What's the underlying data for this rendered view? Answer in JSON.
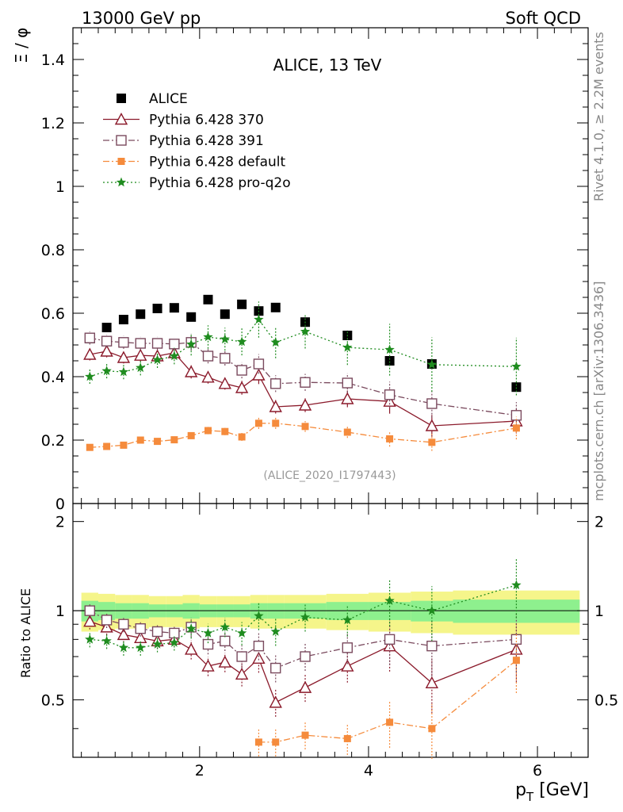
{
  "header": {
    "left": "13000 GeV pp",
    "right": "Soft QCD",
    "side_rivet": "Rivet 4.1.0, ≥ 2.2M events",
    "side_mcplots": "mcplots.cern.ch [arXiv:1306.3436]"
  },
  "chart_data": [
    {
      "type": "scatter",
      "panel": "main",
      "title": "ALICE, 13 TeV",
      "annotation": "(ALICE_2020_I1797443)",
      "xlabel": "p_T [GeV]",
      "ylabel": "Ξ / φ",
      "xlim": [
        0.5,
        6.6
      ],
      "ylim": [
        0,
        1.5
      ],
      "yticks": [
        "0",
        "0.2",
        "0.4",
        "0.6",
        "0.8",
        "1",
        "1.2",
        "1.4"
      ],
      "legend_position": "top-left",
      "series": [
        {
          "name": "ALICE",
          "color": "#000000",
          "marker": "square",
          "x": [
            0.7,
            0.9,
            1.1,
            1.3,
            1.5,
            1.7,
            1.9,
            2.1,
            2.3,
            2.5,
            2.7,
            2.9,
            3.25,
            3.75,
            4.25,
            4.75,
            5.75
          ],
          "values": [
            0.52,
            0.555,
            0.58,
            0.597,
            0.615,
            0.617,
            0.588,
            0.643,
            0.597,
            0.628,
            0.607,
            0.618,
            0.572,
            0.53,
            0.45,
            0.44,
            0.367
          ]
        },
        {
          "name": "Pythia 6.428 370",
          "color": "#8b1a2b",
          "marker": "triangle",
          "x": [
            0.7,
            0.9,
            1.1,
            1.3,
            1.5,
            1.7,
            1.9,
            2.1,
            2.3,
            2.5,
            2.7,
            2.9,
            3.25,
            3.75,
            4.25,
            4.75,
            5.75
          ],
          "values": [
            0.47,
            0.48,
            0.46,
            0.467,
            0.465,
            0.475,
            0.415,
            0.398,
            0.378,
            0.365,
            0.405,
            0.305,
            0.31,
            0.33,
            0.322,
            0.245,
            0.26
          ]
        },
        {
          "name": "Pythia 6.428 391",
          "color": "#7a4a5e",
          "marker": "open-square",
          "x": [
            0.7,
            0.9,
            1.1,
            1.3,
            1.5,
            1.7,
            1.9,
            2.1,
            2.3,
            2.5,
            2.7,
            2.9,
            3.25,
            3.75,
            4.25,
            4.75,
            5.75
          ],
          "values": [
            0.522,
            0.512,
            0.508,
            0.505,
            0.505,
            0.503,
            0.508,
            0.465,
            0.458,
            0.42,
            0.44,
            0.378,
            0.382,
            0.38,
            0.343,
            0.315,
            0.278
          ]
        },
        {
          "name": "Pythia 6.428 default",
          "color": "#f58b3c",
          "marker": "filled-square",
          "x": [
            0.7,
            0.9,
            1.1,
            1.3,
            1.5,
            1.7,
            1.9,
            2.1,
            2.3,
            2.5,
            2.7,
            2.9,
            3.25,
            3.75,
            4.25,
            4.75,
            5.75
          ],
          "values": [
            0.177,
            0.18,
            0.184,
            0.2,
            0.196,
            0.201,
            0.214,
            0.23,
            0.227,
            0.21,
            0.253,
            0.253,
            0.243,
            0.225,
            0.204,
            0.193,
            0.238
          ]
        },
        {
          "name": "Pythia 6.428 pro-q2o",
          "color": "#1f8c1f",
          "marker": "star",
          "x": [
            0.7,
            0.9,
            1.1,
            1.3,
            1.5,
            1.7,
            1.9,
            2.1,
            2.3,
            2.5,
            2.7,
            2.9,
            3.25,
            3.75,
            4.25,
            4.75,
            5.75
          ],
          "values": [
            0.4,
            0.418,
            0.415,
            0.428,
            0.453,
            0.465,
            0.502,
            0.525,
            0.518,
            0.51,
            0.58,
            0.508,
            0.542,
            0.492,
            0.485,
            0.438,
            0.432
          ]
        }
      ]
    },
    {
      "type": "scatter",
      "panel": "ratio",
      "xlabel": "p_T [GeV]",
      "ylabel": "Ratio to ALICE",
      "xlim": [
        0.5,
        6.6
      ],
      "ylim": [
        0.32,
        2.3
      ],
      "xticks": [
        "2",
        "4",
        "6"
      ],
      "yticks": [
        "0.5",
        "1",
        "2"
      ],
      "series": [
        {
          "name": "Pythia 6.428 370",
          "values": [
            0.92,
            0.88,
            0.83,
            0.81,
            0.79,
            0.8,
            0.74,
            0.65,
            0.67,
            0.61,
            0.69,
            0.49,
            0.55,
            0.65,
            0.76,
            0.57,
            0.74
          ]
        },
        {
          "name": "Pythia 6.428 391",
          "values": [
            1.0,
            0.93,
            0.9,
            0.87,
            0.85,
            0.84,
            0.88,
            0.77,
            0.79,
            0.7,
            0.76,
            0.64,
            0.7,
            0.75,
            0.8,
            0.76,
            0.8
          ]
        },
        {
          "name": "Pythia 6.428 default",
          "values": [
            null,
            null,
            null,
            null,
            null,
            null,
            null,
            null,
            null,
            null,
            0.36,
            0.36,
            0.38,
            0.37,
            0.42,
            0.4,
            0.68
          ]
        },
        {
          "name": "Pythia 6.428 pro-q2o",
          "values": [
            0.8,
            0.79,
            0.75,
            0.75,
            0.77,
            0.78,
            0.87,
            0.84,
            0.88,
            0.84,
            0.96,
            0.85,
            0.95,
            0.93,
            1.08,
            1.0,
            1.22
          ]
        }
      ]
    }
  ]
}
